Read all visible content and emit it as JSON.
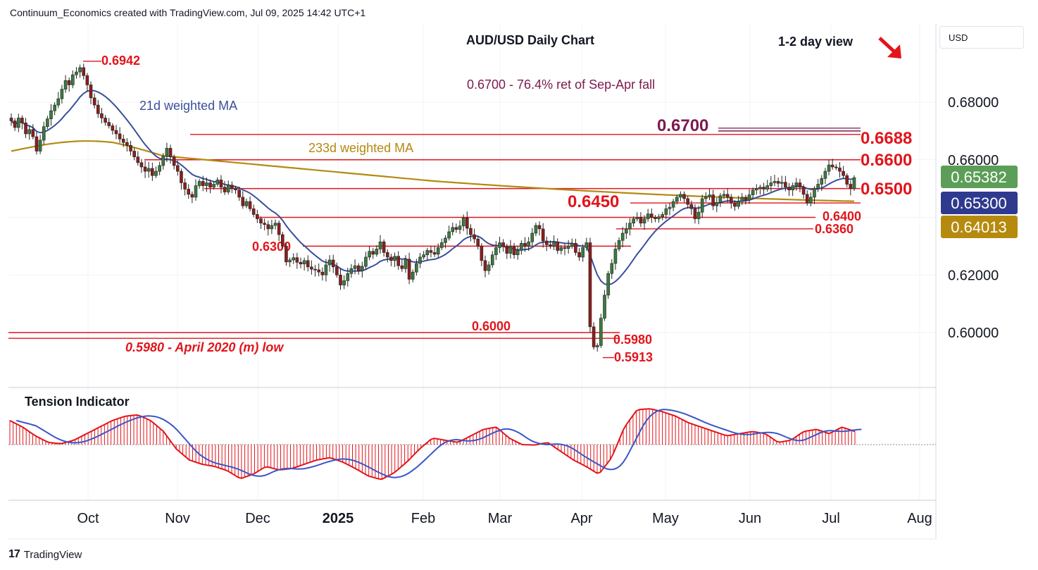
{
  "header": {
    "attribution": "Continuum_Economics created with TradingView.com, Jul 09, 2025 14:42 UTC+1"
  },
  "footer": {
    "brand": "TradingView",
    "logo_glyph": "17"
  },
  "currency_button": "USD",
  "colors": {
    "up": "#3c7a3e",
    "down": "#8b1e1e",
    "levels": "#e1151b",
    "ma21": "#3a4f9a",
    "ma233": "#b38a12",
    "burgundy": "#7b1a4f",
    "price_badge": "#5c9e58",
    "ma21_badge": "#2f3a8f",
    "ma233_badge": "#b58a0e"
  },
  "chart_data": {
    "type": "candlestick",
    "title": "AUD/USD Daily Chart",
    "view_label": "1-2 day view",
    "view_direction": "down",
    "ylim": [
      0.587,
      0.6975
    ],
    "y_ticks": [
      "0.68000",
      "0.66000",
      "0.62000",
      "0.60000"
    ],
    "x_ticks": [
      "Oct",
      "Nov",
      "Dec",
      "2025",
      "Feb",
      "Mar",
      "Apr",
      "May",
      "Jun",
      "Jul",
      "Aug"
    ],
    "price_badges": [
      {
        "label": "0.65382",
        "role": "last-price"
      },
      {
        "label": "0.65300",
        "role": "21d weighted MA"
      },
      {
        "label": "0.64013",
        "role": "233d weighted MA"
      }
    ],
    "annotations": {
      "retracement": "0.6700 - 76.4% ret of Sep-Apr fall",
      "ma21_label": "21d weighted MA",
      "ma233_label": "233d weighted MA",
      "high_label": "0.6942",
      "low_label": "0.5913",
      "april_low": "0.5980 - April 2020 (m) low"
    },
    "levels": [
      {
        "label": "0.6700",
        "value": 0.67
      },
      {
        "label": "0.6688",
        "value": 0.6688
      },
      {
        "label": "0.6600",
        "value": 0.66
      },
      {
        "label": "0.6500",
        "value": 0.65
      },
      {
        "label": "0.6450",
        "value": 0.645
      },
      {
        "label": "0.6400",
        "value": 0.64
      },
      {
        "label": "0.6360",
        "value": 0.636
      },
      {
        "label": "0.6300",
        "value": 0.63
      },
      {
        "label": "0.6000",
        "value": 0.6
      },
      {
        "label": "0.5980",
        "value": 0.598
      }
    ],
    "closes": [
      0.6735,
      0.6712,
      0.6745,
      0.6728,
      0.669,
      0.6705,
      0.668,
      0.663,
      0.6668,
      0.6715,
      0.6742,
      0.677,
      0.679,
      0.6812,
      0.6845,
      0.6875,
      0.686,
      0.6895,
      0.6905,
      0.692,
      0.6892,
      0.686,
      0.6815,
      0.679,
      0.676,
      0.6745,
      0.673,
      0.6718,
      0.6702,
      0.669,
      0.6672,
      0.666,
      0.665,
      0.663,
      0.661,
      0.659,
      0.6575,
      0.656,
      0.657,
      0.6545,
      0.656,
      0.658,
      0.6612,
      0.664,
      0.661,
      0.658,
      0.656,
      0.652,
      0.6498,
      0.648,
      0.647,
      0.651,
      0.6525,
      0.651,
      0.652,
      0.6505,
      0.6515,
      0.653,
      0.6505,
      0.6488,
      0.6512,
      0.65,
      0.6495,
      0.647,
      0.644,
      0.6455,
      0.643,
      0.641,
      0.6395,
      0.638,
      0.6375,
      0.636,
      0.6372,
      0.638,
      0.634,
      0.63,
      0.6245,
      0.6252,
      0.626,
      0.6244,
      0.6238,
      0.625,
      0.6228,
      0.622,
      0.6218,
      0.621,
      0.62,
      0.6235,
      0.6252,
      0.6228,
      0.62,
      0.6165,
      0.618,
      0.6205,
      0.6222,
      0.6232,
      0.6215,
      0.623,
      0.6262,
      0.6282,
      0.6272,
      0.629,
      0.6315,
      0.6278,
      0.6262,
      0.625,
      0.6265,
      0.6232,
      0.6222,
      0.6255,
      0.6185,
      0.621,
      0.624,
      0.6262,
      0.627,
      0.6285,
      0.6278,
      0.6272,
      0.6295,
      0.6312,
      0.6328,
      0.635,
      0.6365,
      0.6358,
      0.637,
      0.6398,
      0.6362,
      0.634,
      0.6325,
      0.63,
      0.625,
      0.6215,
      0.6235,
      0.627,
      0.6295,
      0.6312,
      0.6298,
      0.6275,
      0.6298,
      0.627,
      0.6285,
      0.631,
      0.63,
      0.6315,
      0.6345,
      0.6372,
      0.636,
      0.6318,
      0.6305,
      0.63,
      0.6315,
      0.6285,
      0.6295,
      0.6292,
      0.63,
      0.631,
      0.6278,
      0.6262,
      0.6295,
      0.6312,
      0.602,
      0.595,
      0.5955,
      0.605,
      0.613,
      0.6205,
      0.624,
      0.629,
      0.632,
      0.6345,
      0.636,
      0.638,
      0.6395,
      0.64,
      0.638,
      0.6395,
      0.6412,
      0.64,
      0.6395,
      0.6402,
      0.641,
      0.643,
      0.6435,
      0.6455,
      0.647,
      0.648,
      0.6465,
      0.6445,
      0.643,
      0.6395,
      0.6418,
      0.6465,
      0.6472,
      0.6478,
      0.644,
      0.6452,
      0.6475,
      0.648,
      0.647,
      0.645,
      0.6438,
      0.6455,
      0.647,
      0.646,
      0.6478,
      0.6495,
      0.65,
      0.6505,
      0.6498,
      0.651,
      0.652,
      0.6525,
      0.6518,
      0.6522,
      0.6505,
      0.6495,
      0.651,
      0.652,
      0.6505,
      0.648,
      0.645,
      0.647,
      0.65,
      0.6515,
      0.6535,
      0.656,
      0.6582,
      0.6575,
      0.6572,
      0.656,
      0.6545,
      0.6515,
      0.65,
      0.6538
    ],
    "tension_indicator": {
      "title": "Tension Indicator",
      "values": [
        0.55,
        0.4,
        0.2,
        0.05,
        0.02,
        0.1,
        0.25,
        0.4,
        0.55,
        0.65,
        0.68,
        0.55,
        0.3,
        -0.1,
        -0.35,
        -0.45,
        -0.5,
        -0.6,
        -0.78,
        -0.68,
        -0.5,
        -0.58,
        -0.55,
        -0.45,
        -0.35,
        -0.3,
        -0.4,
        -0.55,
        -0.72,
        -0.8,
        -0.65,
        -0.4,
        -0.1,
        0.15,
        0.1,
        0.05,
        0.2,
        0.35,
        0.4,
        0.15,
        0.0,
        -0.01,
        0.05,
        -0.15,
        -0.35,
        -0.5,
        -0.68,
        -0.3,
        0.4,
        0.8,
        0.82,
        0.75,
        0.65,
        0.5,
        0.4,
        0.3,
        0.2,
        0.25,
        0.3,
        0.25,
        0.05,
        0.1,
        0.3,
        0.35,
        0.25,
        0.4,
        0.3
      ],
      "zero": 0
    }
  }
}
